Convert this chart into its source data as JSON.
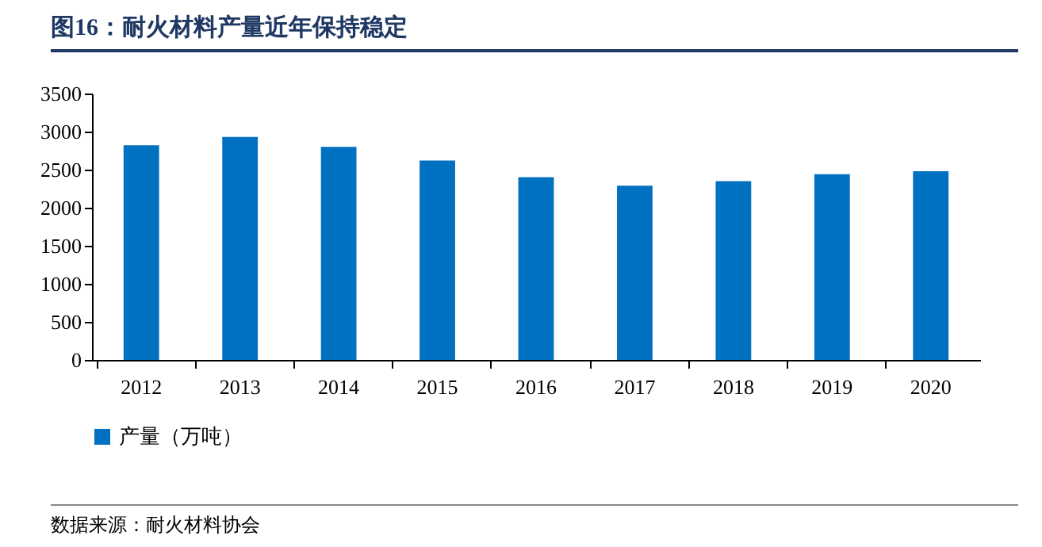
{
  "chart_data": {
    "type": "bar",
    "title": "图16：耐火材料产量近年保持稳定",
    "categories": [
      "2012",
      "2013",
      "2014",
      "2015",
      "2016",
      "2017",
      "2018",
      "2019",
      "2020"
    ],
    "series": [
      {
        "name": "产量（万吨）",
        "color": "#0070c0",
        "values": [
          2820,
          2930,
          2800,
          2620,
          2400,
          2290,
          2350,
          2440,
          2480
        ]
      }
    ],
    "ylim": [
      0,
      3500
    ],
    "yticks": [
      0,
      500,
      1000,
      1500,
      2000,
      2500,
      3000,
      3500
    ],
    "grid": false,
    "legend": "bottom",
    "annotations": [
      "数据来源：耐火材料协会"
    ]
  }
}
